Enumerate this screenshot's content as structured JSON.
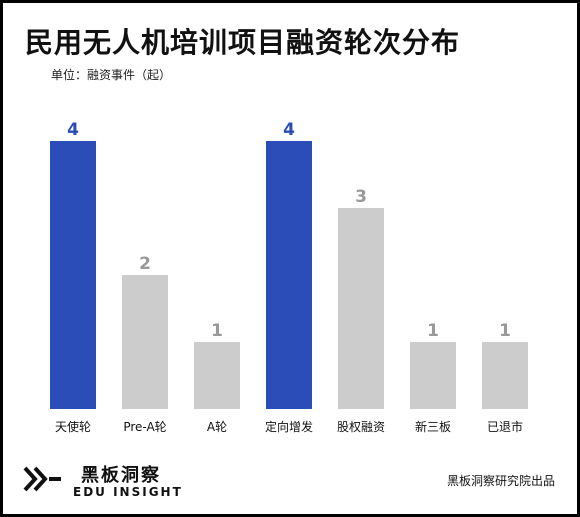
{
  "title": "民用无人机培训项目融资轮次分布",
  "unit_label": "单位：融资事件（起）",
  "colors": {
    "highlight": "#2A4DB8",
    "normal": "#CCCCCC",
    "label_highlight": "#2A4DB8",
    "label_normal": "#999999"
  },
  "chart_data": {
    "type": "bar",
    "categories": [
      "天使轮",
      "Pre-A轮",
      "A轮",
      "定向增发",
      "股权融资",
      "新三板",
      "已退市"
    ],
    "values": [
      4,
      2,
      1,
      4,
      3,
      1,
      1
    ],
    "highlighted": [
      true,
      false,
      false,
      true,
      false,
      false,
      false
    ],
    "title": "民用无人机培训项目融资轮次分布",
    "ylabel": "单位：融资事件（起）",
    "ylim": [
      0,
      4
    ],
    "grid": false,
    "data_labels": [
      "4",
      "2",
      "1",
      "4",
      "3",
      "1",
      "1"
    ]
  },
  "footer": {
    "logo_cn": "黑板洞察",
    "logo_en": "EDU INSIGHT",
    "logo_icon": "edu-insight-logo-icon",
    "source": "黑板洞察研究院出品"
  }
}
